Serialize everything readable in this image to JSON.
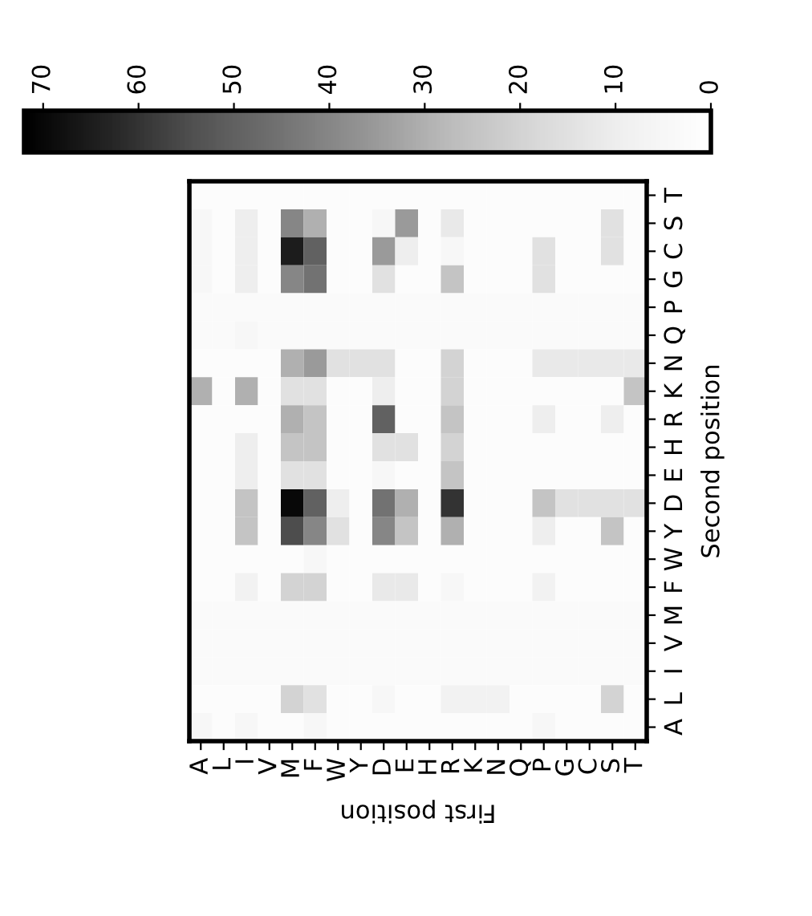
{
  "chart_data": {
    "type": "heatmap",
    "xlabel": "First position",
    "ylabel": "Second position",
    "categories": [
      "A",
      "L",
      "I",
      "V",
      "M",
      "F",
      "W",
      "Y",
      "D",
      "E",
      "H",
      "R",
      "K",
      "N",
      "Q",
      "P",
      "G",
      "C",
      "S",
      "T"
    ],
    "y_categories": [
      "T",
      "S",
      "C",
      "G",
      "P",
      "Q",
      "N",
      "K",
      "R",
      "H",
      "E",
      "D",
      "Y",
      "W",
      "F",
      "M",
      "V",
      "I",
      "L",
      "A"
    ],
    "cells": [
      [
        2,
        2,
        2,
        2,
        2,
        2,
        2,
        2,
        2,
        2,
        2,
        2,
        2,
        2,
        2,
        2,
        2,
        2,
        2,
        2
      ],
      [
        5,
        2,
        10,
        2,
        40,
        30,
        2,
        2,
        5,
        35,
        2,
        12,
        2,
        2,
        2,
        2,
        2,
        2,
        15,
        2
      ],
      [
        5,
        2,
        10,
        2,
        65,
        50,
        2,
        2,
        35,
        10,
        2,
        5,
        2,
        2,
        2,
        15,
        2,
        2,
        15,
        2
      ],
      [
        5,
        2,
        10,
        2,
        40,
        45,
        2,
        2,
        15,
        2,
        2,
        25,
        2,
        2,
        2,
        15,
        2,
        2,
        2,
        2
      ],
      [
        3,
        3,
        3,
        3,
        3,
        3,
        3,
        3,
        3,
        3,
        3,
        3,
        3,
        3,
        3,
        3,
        3,
        3,
        3,
        3
      ],
      [
        3,
        3,
        5,
        3,
        3,
        3,
        3,
        3,
        3,
        3,
        3,
        3,
        3,
        3,
        3,
        3,
        3,
        3,
        3,
        3
      ],
      [
        2,
        2,
        2,
        2,
        30,
        35,
        15,
        15,
        15,
        2,
        2,
        20,
        2,
        2,
        2,
        12,
        12,
        12,
        12,
        12
      ],
      [
        30,
        2,
        30,
        2,
        15,
        15,
        2,
        2,
        10,
        2,
        2,
        20,
        2,
        2,
        2,
        2,
        2,
        2,
        2,
        25
      ],
      [
        2,
        2,
        2,
        2,
        30,
        25,
        2,
        2,
        50,
        2,
        2,
        25,
        2,
        2,
        2,
        10,
        2,
        2,
        10,
        2
      ],
      [
        2,
        2,
        10,
        2,
        25,
        25,
        2,
        2,
        15,
        15,
        2,
        20,
        2,
        2,
        2,
        2,
        2,
        2,
        2,
        2
      ],
      [
        2,
        2,
        10,
        2,
        15,
        15,
        2,
        2,
        5,
        2,
        2,
        25,
        2,
        2,
        2,
        2,
        2,
        2,
        2,
        2
      ],
      [
        2,
        2,
        25,
        2,
        70,
        50,
        10,
        2,
        45,
        30,
        2,
        60,
        2,
        2,
        2,
        25,
        15,
        15,
        15,
        15
      ],
      [
        2,
        2,
        25,
        2,
        55,
        40,
        15,
        2,
        40,
        25,
        2,
        30,
        2,
        2,
        2,
        10,
        2,
        2,
        25,
        2
      ],
      [
        2,
        2,
        2,
        2,
        2,
        5,
        2,
        2,
        2,
        2,
        2,
        2,
        2,
        2,
        2,
        2,
        2,
        2,
        2,
        2
      ],
      [
        2,
        2,
        8,
        2,
        20,
        20,
        2,
        2,
        12,
        12,
        2,
        5,
        2,
        2,
        2,
        8,
        2,
        2,
        2,
        2
      ],
      [
        3,
        3,
        3,
        3,
        3,
        3,
        3,
        3,
        3,
        3,
        3,
        3,
        3,
        3,
        3,
        3,
        3,
        3,
        3,
        3
      ],
      [
        3,
        3,
        3,
        3,
        3,
        3,
        3,
        3,
        3,
        3,
        3,
        3,
        3,
        3,
        3,
        3,
        3,
        3,
        3,
        3
      ],
      [
        3,
        3,
        3,
        3,
        3,
        3,
        3,
        3,
        3,
        3,
        3,
        3,
        3,
        3,
        3,
        3,
        3,
        3,
        3,
        3
      ],
      [
        2,
        2,
        2,
        2,
        20,
        15,
        2,
        2,
        5,
        2,
        2,
        8,
        8,
        8,
        2,
        2,
        2,
        2,
        20,
        2
      ],
      [
        5,
        2,
        5,
        2,
        2,
        5,
        2,
        2,
        2,
        2,
        2,
        2,
        2,
        2,
        2,
        5,
        2,
        2,
        2,
        2
      ]
    ],
    "clim": [
      0,
      72
    ],
    "cticks": [
      0,
      10,
      20,
      30,
      40,
      50,
      60,
      70
    ]
  }
}
